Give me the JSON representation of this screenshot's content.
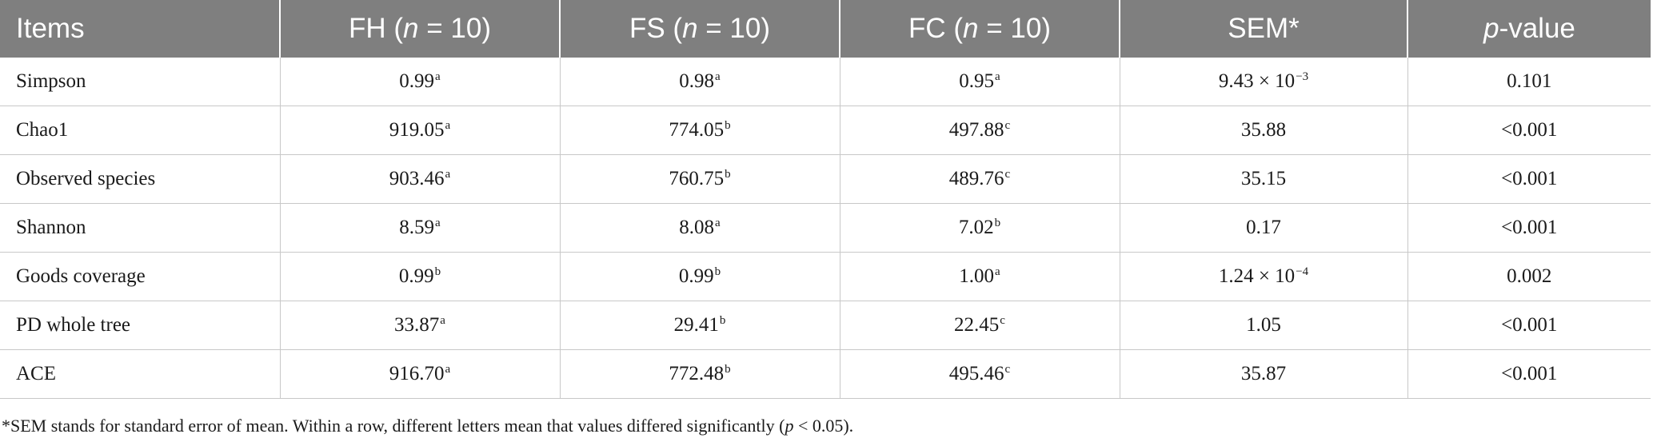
{
  "table": {
    "headers": [
      {
        "prefix": "Items",
        "italic": "",
        "suffix": ""
      },
      {
        "prefix": "FH (",
        "italic": "n",
        "suffix": " = 10)"
      },
      {
        "prefix": "FS (",
        "italic": "n",
        "suffix": " = 10)"
      },
      {
        "prefix": "FC (",
        "italic": "n",
        "suffix": " = 10)"
      },
      {
        "prefix": "SEM*",
        "italic": "",
        "suffix": ""
      },
      {
        "prefix": "",
        "italic": "p",
        "suffix": "-value"
      }
    ],
    "rows": [
      {
        "item": "Simpson",
        "cells": [
          {
            "v": "0.99",
            "s": "a"
          },
          {
            "v": "0.98",
            "s": "a"
          },
          {
            "v": "0.95",
            "s": "a"
          },
          {
            "v": "9.43 × 10",
            "s": "−3"
          },
          {
            "v": "0.101",
            "s": ""
          }
        ]
      },
      {
        "item": "Chao1",
        "cells": [
          {
            "v": "919.05",
            "s": "a"
          },
          {
            "v": "774.05",
            "s": "b"
          },
          {
            "v": "497.88",
            "s": "c"
          },
          {
            "v": "35.88",
            "s": ""
          },
          {
            "v": "<0.001",
            "s": ""
          }
        ]
      },
      {
        "item": "Observed species",
        "cells": [
          {
            "v": "903.46",
            "s": "a"
          },
          {
            "v": "760.75",
            "s": "b"
          },
          {
            "v": "489.76",
            "s": "c"
          },
          {
            "v": "35.15",
            "s": ""
          },
          {
            "v": "<0.001",
            "s": ""
          }
        ]
      },
      {
        "item": "Shannon",
        "cells": [
          {
            "v": "8.59",
            "s": "a"
          },
          {
            "v": "8.08",
            "s": "a"
          },
          {
            "v": "7.02",
            "s": "b"
          },
          {
            "v": "0.17",
            "s": ""
          },
          {
            "v": "<0.001",
            "s": ""
          }
        ]
      },
      {
        "item": "Goods coverage",
        "cells": [
          {
            "v": "0.99",
            "s": "b"
          },
          {
            "v": "0.99",
            "s": "b"
          },
          {
            "v": "1.00",
            "s": "a"
          },
          {
            "v": "1.24 × 10",
            "s": "−4"
          },
          {
            "v": "0.002",
            "s": ""
          }
        ]
      },
      {
        "item": "PD whole tree",
        "cells": [
          {
            "v": "33.87",
            "s": "a"
          },
          {
            "v": "29.41",
            "s": "b"
          },
          {
            "v": "22.45",
            "s": "c"
          },
          {
            "v": "1.05",
            "s": ""
          },
          {
            "v": "<0.001",
            "s": ""
          }
        ]
      },
      {
        "item": "ACE",
        "cells": [
          {
            "v": "916.70",
            "s": "a"
          },
          {
            "v": "772.48",
            "s": "b"
          },
          {
            "v": "495.46",
            "s": "c"
          },
          {
            "v": "35.87",
            "s": ""
          },
          {
            "v": "<0.001",
            "s": ""
          }
        ]
      }
    ]
  },
  "footnote": {
    "before": "*SEM stands for standard error of mean. Within a row, different letters mean that values differed significantly (",
    "italic": "p",
    "after": " < 0.05)."
  },
  "colors": {
    "header_bg": "#7f7f7f",
    "header_text": "#ffffff",
    "grid": "#c8c8c8"
  }
}
